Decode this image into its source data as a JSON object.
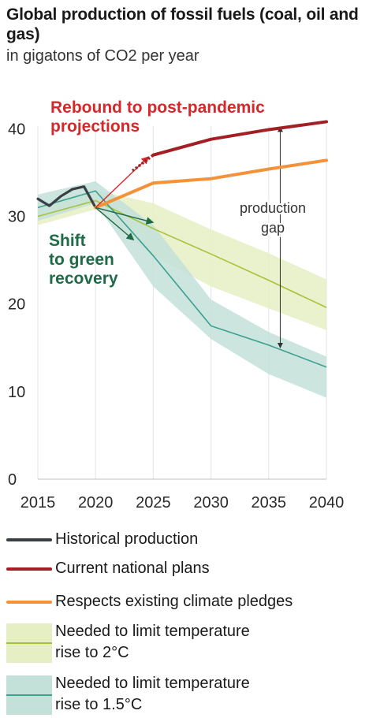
{
  "title": "Global production of fossil fuels (coal, oil and gas)",
  "subtitle": "in gigatons of CO2 per year",
  "colors": {
    "historical": "#3a3f45",
    "national_plans": "#a31f23",
    "pledges": "#f4923a",
    "limit_2c_band": "#e6efc4",
    "limit_2c_line": "#a8c23a",
    "limit_15c_band": "#c3e0d9",
    "limit_15c_line": "#3aa08f",
    "rebound_arrow": "#d6272b",
    "green_arrow": "#1e6b47",
    "annotation": "#333333"
  },
  "annotations": {
    "rebound": [
      "Rebound to post-pandemic",
      "projections"
    ],
    "green": [
      "Shift",
      "to green",
      "recovery"
    ],
    "gap": [
      "production",
      "gap"
    ]
  },
  "chart_data": {
    "type": "line",
    "title": "Global production of fossil fuels (coal, oil and gas)",
    "subtitle": "in gigatons of CO2 per year",
    "xlabel": "",
    "ylabel": "",
    "xlim": [
      2015,
      2040
    ],
    "ylim": [
      0,
      43
    ],
    "xticks": [
      2015,
      2020,
      2025,
      2030,
      2035,
      2040
    ],
    "yticks": [
      0,
      10,
      20,
      30,
      40
    ],
    "grid": true,
    "series": [
      {
        "name": "Historical production",
        "style": "line",
        "color": "#3a3f45",
        "x": [
          2015,
          2016,
          2017,
          2018,
          2019,
          2020
        ],
        "y": [
          32.0,
          31.2,
          32.3,
          33.1,
          33.4,
          31.0
        ]
      },
      {
        "name": "Current national plans",
        "style": "line",
        "color": "#a31f23",
        "x": [
          2025,
          2030,
          2035,
          2040
        ],
        "y": [
          37.0,
          38.8,
          39.9,
          40.8
        ]
      },
      {
        "name": "Respects existing climate pledges",
        "style": "line",
        "color": "#f4923a",
        "x": [
          2020,
          2025,
          2030,
          2035,
          2040
        ],
        "y": [
          31.0,
          33.8,
          34.3,
          35.4,
          36.4
        ]
      },
      {
        "name": "Needed to limit temperature rise to 2°C",
        "style": "band",
        "color": "#a8c23a",
        "x": [
          2015,
          2020,
          2025,
          2030,
          2035,
          2040
        ],
        "y": [
          30.0,
          31.8,
          28.6,
          25.7,
          22.7,
          19.6
        ],
        "lower": [
          29.0,
          30.8,
          25.5,
          22.0,
          19.5,
          17.0
        ],
        "upper": [
          31.5,
          33.0,
          31.5,
          28.5,
          25.8,
          22.8
        ]
      },
      {
        "name": "Needed to limit temperature rise to 1.5°C",
        "style": "band",
        "color": "#3aa08f",
        "x": [
          2015,
          2020,
          2025,
          2030,
          2035,
          2040
        ],
        "y": [
          31.0,
          32.9,
          25.5,
          17.5,
          15.3,
          12.8
        ],
        "lower": [
          29.5,
          31.5,
          22.0,
          16.0,
          12.0,
          9.3
        ],
        "upper": [
          32.5,
          34.0,
          29.0,
          20.5,
          16.8,
          14.0
        ]
      }
    ],
    "arrows": [
      {
        "name": "rebound-arrow",
        "from": [
          2020,
          31.0
        ],
        "to": [
          2024.6,
          36.8
        ]
      },
      {
        "name": "rebound-dotted-link",
        "from": [
          2023.2,
          35.2
        ],
        "to": [
          2025,
          37.0
        ]
      },
      {
        "name": "green-arrow-2c",
        "from": [
          2020,
          31.0
        ],
        "to": [
          2025,
          29.3
        ]
      },
      {
        "name": "green-arrow-15c",
        "from": [
          2020,
          31.0
        ],
        "to": [
          2023.3,
          27.3
        ]
      },
      {
        "name": "gap-arrow",
        "from": [
          2036,
          40.2
        ],
        "to": [
          2036,
          15.0
        ]
      }
    ],
    "legend": {
      "placement": "bottom",
      "entries": [
        "Historical production",
        "Current national plans",
        "Respects existing climate pledges",
        "Needed to limit temperature rise to 2°C",
        "Needed to limit temperature rise to 1.5°C"
      ]
    }
  },
  "legend": {
    "historical": "Historical production",
    "national_plans": "Current national plans",
    "pledges": "Respects existing climate pledges",
    "limit_2c": [
      "Needed to limit temperature",
      "rise to 2°C"
    ],
    "limit_15c": [
      "Needed to limit temperature",
      "rise to 1.5°C"
    ]
  }
}
